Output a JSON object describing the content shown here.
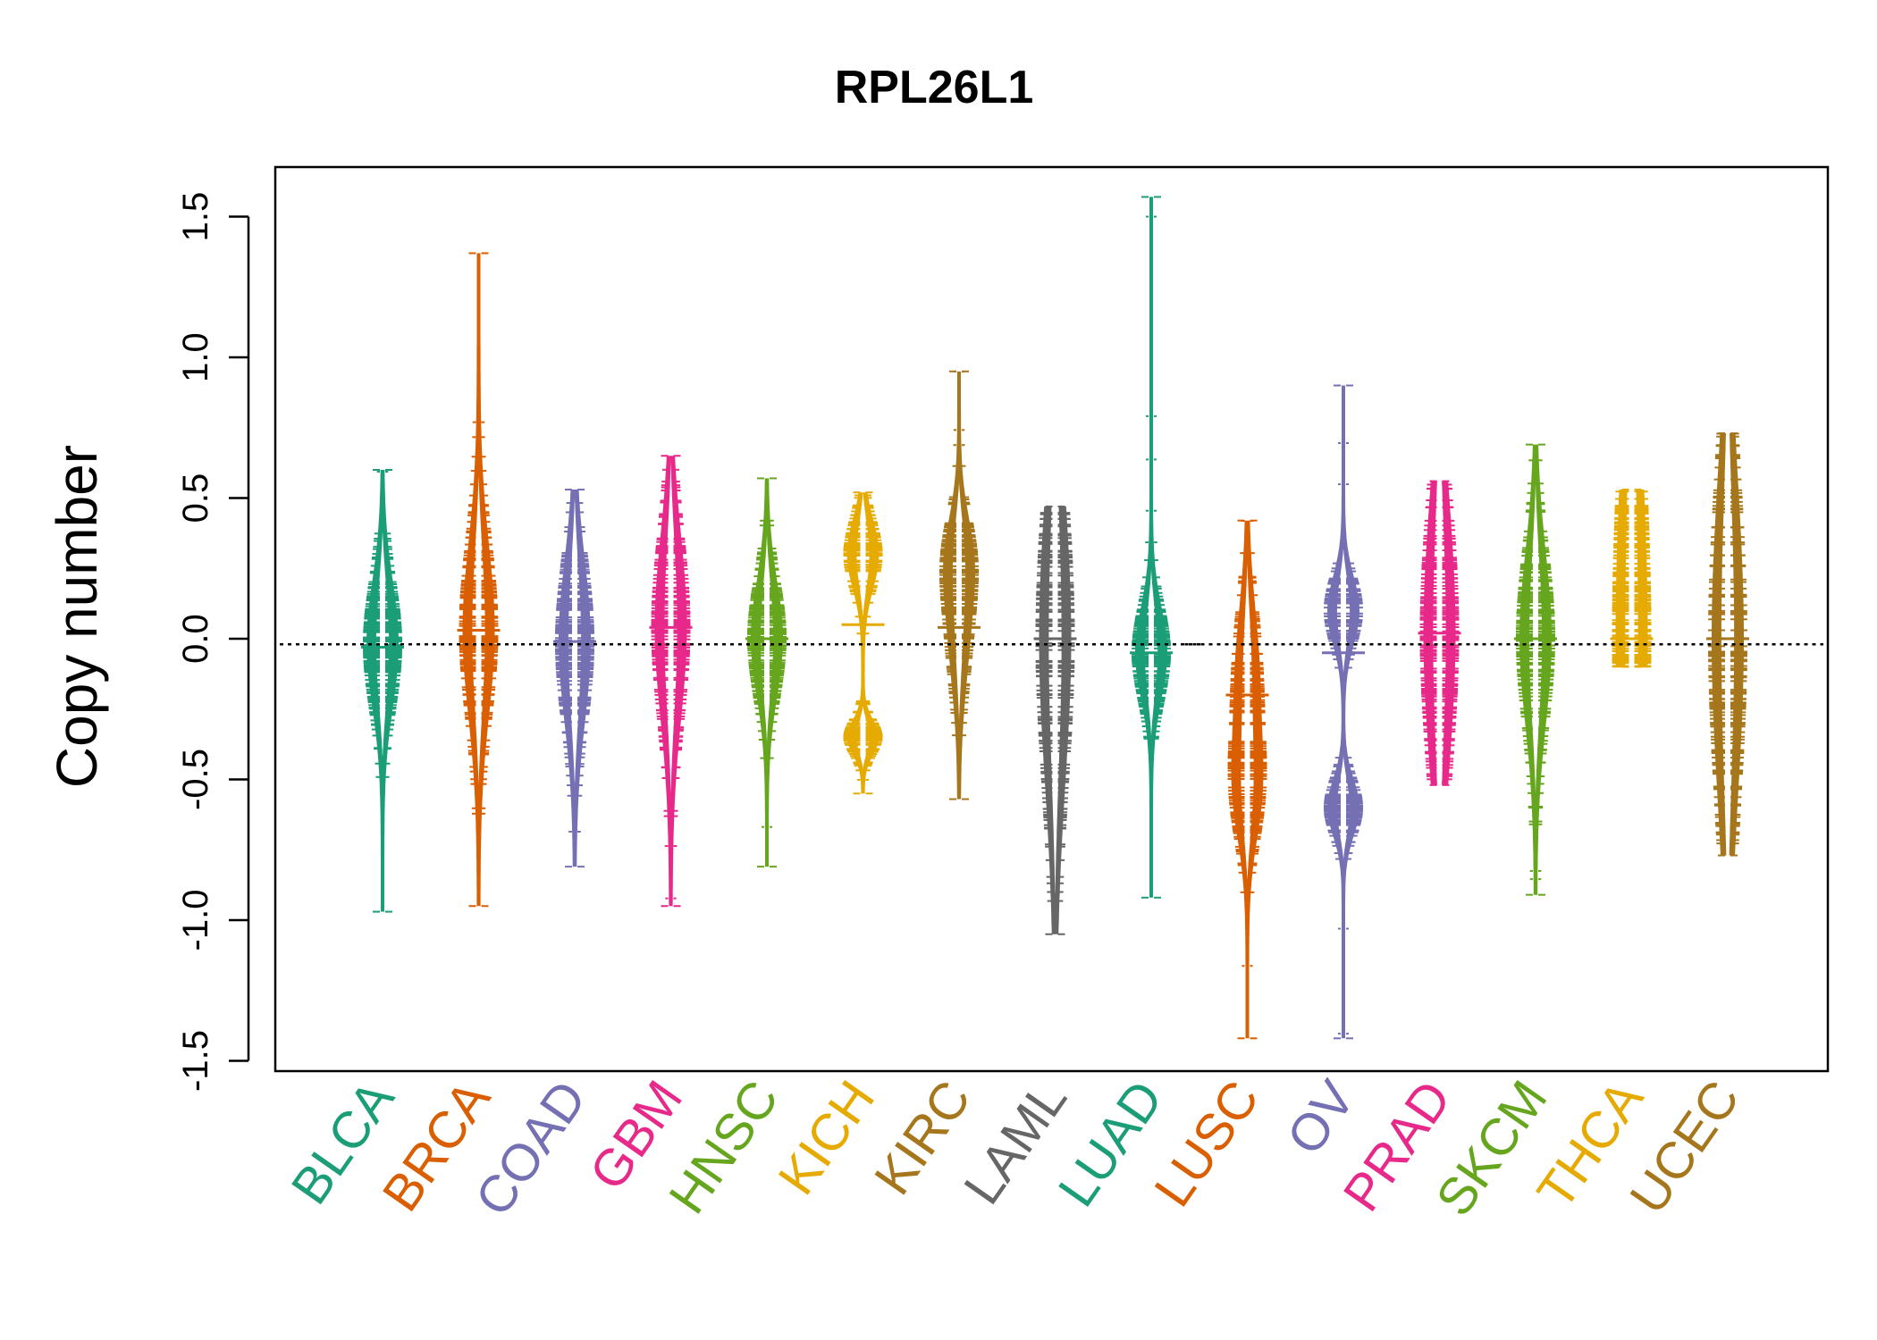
{
  "chart_data": {
    "type": "beanplot",
    "title": "RPL26L1",
    "xlabel": "",
    "ylabel": "Copy number",
    "ylim": [
      -1.5,
      1.5
    ],
    "yticks": [
      "-1.5",
      "-1.0",
      "-0.5",
      "0.0",
      "0.5",
      "1.0",
      "1.5"
    ],
    "reference_line": -0.02,
    "categories": [
      "BLCA",
      "BRCA",
      "COAD",
      "GBM",
      "HNSC",
      "KICH",
      "KIRC",
      "LAML",
      "LUAD",
      "LUSC",
      "OV",
      "PRAD",
      "SKCM",
      "THCA",
      "UCEC"
    ],
    "colors": [
      "#1B9E77",
      "#D95F02",
      "#7570B3",
      "#E7298A",
      "#66A61E",
      "#E6AB02",
      "#A6761D",
      "#666666",
      "#1B9E77",
      "#D95F02",
      "#7570B3",
      "#E7298A",
      "#66A61E",
      "#E6AB02",
      "#A6761D"
    ],
    "series": [
      {
        "category": "BLCA",
        "range": [
          -0.97,
          0.6
        ],
        "modes": [
          [
            -0.02,
            0.22
          ]
        ],
        "mean": -0.03
      },
      {
        "category": "BRCA",
        "range": [
          -0.95,
          1.37
        ],
        "modes": [
          [
            0.03,
            0.3
          ]
        ],
        "mean": 0.03
      },
      {
        "category": "COAD",
        "range": [
          -0.81,
          0.53
        ],
        "modes": [
          [
            -0.01,
            0.28
          ]
        ],
        "mean": -0.01
      },
      {
        "category": "GBM",
        "range": [
          -0.95,
          0.65
        ],
        "modes": [
          [
            0.04,
            0.32
          ]
        ],
        "mean": 0.04
      },
      {
        "category": "HNSC",
        "range": [
          -0.81,
          0.57
        ],
        "modes": [
          [
            0.0,
            0.2
          ]
        ],
        "mean": 0.0
      },
      {
        "category": "KICH",
        "range": [
          -0.55,
          0.52
        ],
        "modes": [
          [
            0.3,
            0.12
          ],
          [
            -0.35,
            0.06
          ]
        ],
        "mean": 0.05
      },
      {
        "category": "KIRC",
        "range": [
          -0.57,
          0.95
        ],
        "modes": [
          [
            0.05,
            0.22
          ],
          [
            0.3,
            0.15
          ]
        ],
        "mean": 0.04
      },
      {
        "category": "LAML",
        "range": [
          -1.05,
          0.47
        ],
        "modes": [
          [
            0.0,
            0.5
          ]
        ],
        "mean": 0.0
      },
      {
        "category": "LUAD",
        "range": [
          -0.92,
          1.57
        ],
        "modes": [
          [
            -0.05,
            0.16
          ]
        ],
        "mean": -0.05
      },
      {
        "category": "LUSC",
        "range": [
          -1.42,
          0.42
        ],
        "modes": [
          [
            -0.15,
            0.25
          ],
          [
            -0.55,
            0.18
          ]
        ],
        "mean": -0.2
      },
      {
        "category": "OV",
        "range": [
          -1.42,
          0.9
        ],
        "modes": [
          [
            0.1,
            0.12
          ],
          [
            -0.6,
            0.1
          ]
        ],
        "mean": -0.05
      },
      {
        "category": "PRAD",
        "range": [
          -0.52,
          0.56
        ],
        "modes": [
          [
            0.02,
            0.45
          ]
        ],
        "mean": 0.02
      },
      {
        "category": "SKCM",
        "range": [
          -0.91,
          0.69
        ],
        "modes": [
          [
            0.0,
            0.3
          ]
        ],
        "mean": 0.0
      },
      {
        "category": "THCA",
        "range": [
          -0.1,
          0.53
        ],
        "modes": [
          [
            0.0,
            0.7
          ]
        ],
        "mean": 0.0
      },
      {
        "category": "UCEC",
        "range": [
          -0.77,
          0.73
        ],
        "modes": [
          [
            0.0,
            0.55
          ]
        ],
        "mean": 0.0
      }
    ],
    "grid": false,
    "legend": "none"
  }
}
